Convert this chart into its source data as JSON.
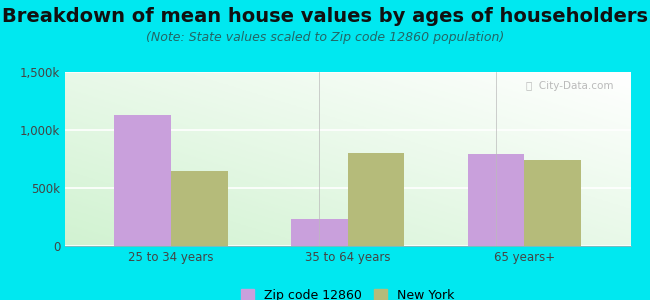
{
  "title": "Breakdown of mean house values by ages of householders",
  "subtitle": "(Note: State values scaled to Zip code 12860 population)",
  "categories": [
    "25 to 34 years",
    "35 to 64 years",
    "65 years+"
  ],
  "zip_values": [
    1130000,
    230000,
    790000
  ],
  "ny_values": [
    650000,
    800000,
    740000
  ],
  "zip_color": "#c9a0dc",
  "ny_color": "#b5bb7a",
  "background_outer": "#00e8f0",
  "ylim": [
    0,
    1500000
  ],
  "yticks": [
    0,
    500000,
    1000000,
    1500000
  ],
  "ytick_labels": [
    "0",
    "500k",
    "1,000k",
    "1,500k"
  ],
  "legend_zip_label": "Zip code 12860",
  "legend_ny_label": "New York",
  "bar_width": 0.32,
  "title_fontsize": 14,
  "subtitle_fontsize": 9,
  "axis_fontsize": 8.5,
  "legend_fontsize": 9
}
